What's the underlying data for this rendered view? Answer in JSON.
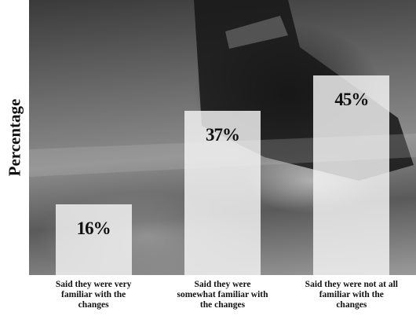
{
  "chart_data": {
    "type": "bar",
    "y_label": "Percentage",
    "categories": [
      "Said they were very familiar with the changes",
      "Said they were somewhat familiar with the changes",
      "Said they were not at all familiar with the changes"
    ],
    "values": [
      16,
      37,
      45
    ],
    "value_labels": [
      "16%",
      "37%",
      "45%"
    ],
    "ylim": [
      0,
      62
    ],
    "color": "#f5f5f5"
  }
}
